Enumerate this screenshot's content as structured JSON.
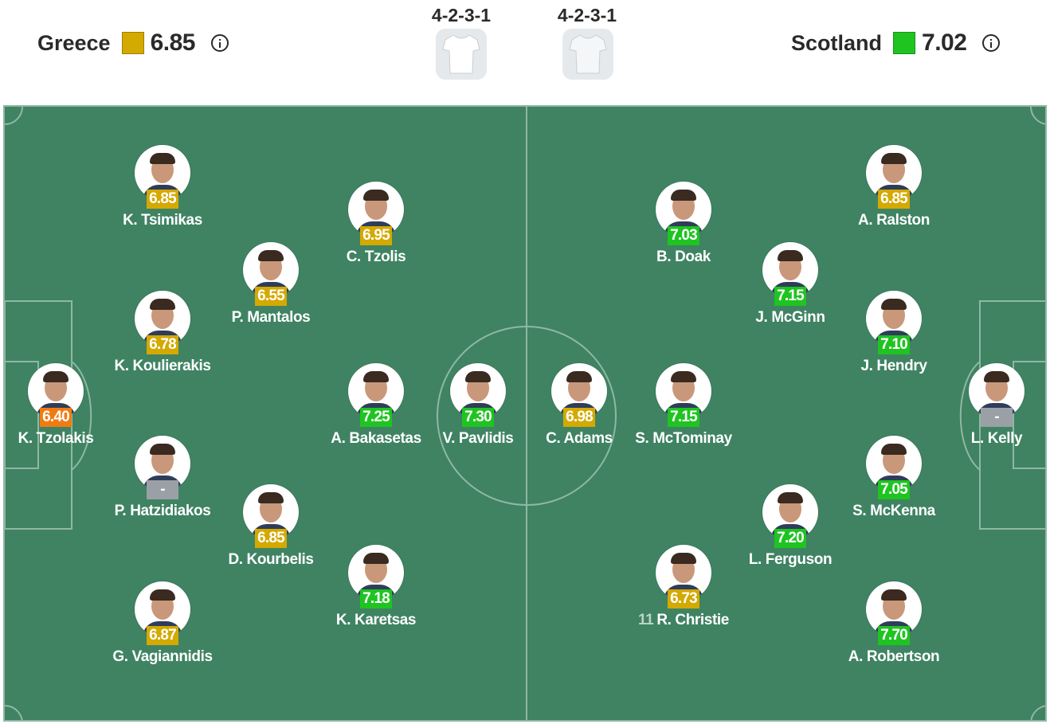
{
  "home": {
    "name": "Greece",
    "rating": "6.85",
    "color": "#d4a900",
    "formation": "4-2-3-1"
  },
  "away": {
    "name": "Scotland",
    "rating": "7.02",
    "color": "#1fc421",
    "formation": "4-2-3-1"
  },
  "rating_colors": {
    "orange": "#f07b10",
    "yellow": "#d4a900",
    "green": "#1fc421",
    "gray": "#9aa0a6"
  },
  "players": [
    {
      "name": "K. Tzolakis",
      "rating": "6.40",
      "level": "orange"
    },
    {
      "name": "K. Tsimikas",
      "rating": "6.85",
      "level": "yellow"
    },
    {
      "name": "K. Koulierakis",
      "rating": "6.78",
      "level": "yellow"
    },
    {
      "name": "P. Hatzidiakos",
      "rating": "-",
      "level": "gray"
    },
    {
      "name": "G. Vagiannidis",
      "rating": "6.87",
      "level": "yellow"
    },
    {
      "name": "P. Mantalos",
      "rating": "6.55",
      "level": "yellow"
    },
    {
      "name": "D. Kourbelis",
      "rating": "6.85",
      "level": "yellow"
    },
    {
      "name": "C. Tzolis",
      "rating": "6.95",
      "level": "yellow"
    },
    {
      "name": "A. Bakasetas",
      "rating": "7.25",
      "level": "green"
    },
    {
      "name": "K. Karetsas",
      "rating": "7.18",
      "level": "green"
    },
    {
      "name": "V. Pavlidis",
      "rating": "7.30",
      "level": "green"
    },
    {
      "name": "C. Adams",
      "rating": "6.98",
      "level": "yellow"
    },
    {
      "name": "B. Doak",
      "rating": "7.03",
      "level": "green"
    },
    {
      "name": "S. McTominay",
      "rating": "7.15",
      "level": "green"
    },
    {
      "name": "R. Christie",
      "rating": "6.73",
      "level": "yellow",
      "number": "11"
    },
    {
      "name": "J. McGinn",
      "rating": "7.15",
      "level": "green"
    },
    {
      "name": "L. Ferguson",
      "rating": "7.20",
      "level": "green"
    },
    {
      "name": "A. Ralston",
      "rating": "6.85",
      "level": "yellow"
    },
    {
      "name": "J. Hendry",
      "rating": "7.10",
      "level": "green"
    },
    {
      "name": "S. McKenna",
      "rating": "7.05",
      "level": "green"
    },
    {
      "name": "A. Robertson",
      "rating": "7.70",
      "level": "green"
    },
    {
      "name": "L. Kelly",
      "rating": "-",
      "level": "gray"
    }
  ]
}
